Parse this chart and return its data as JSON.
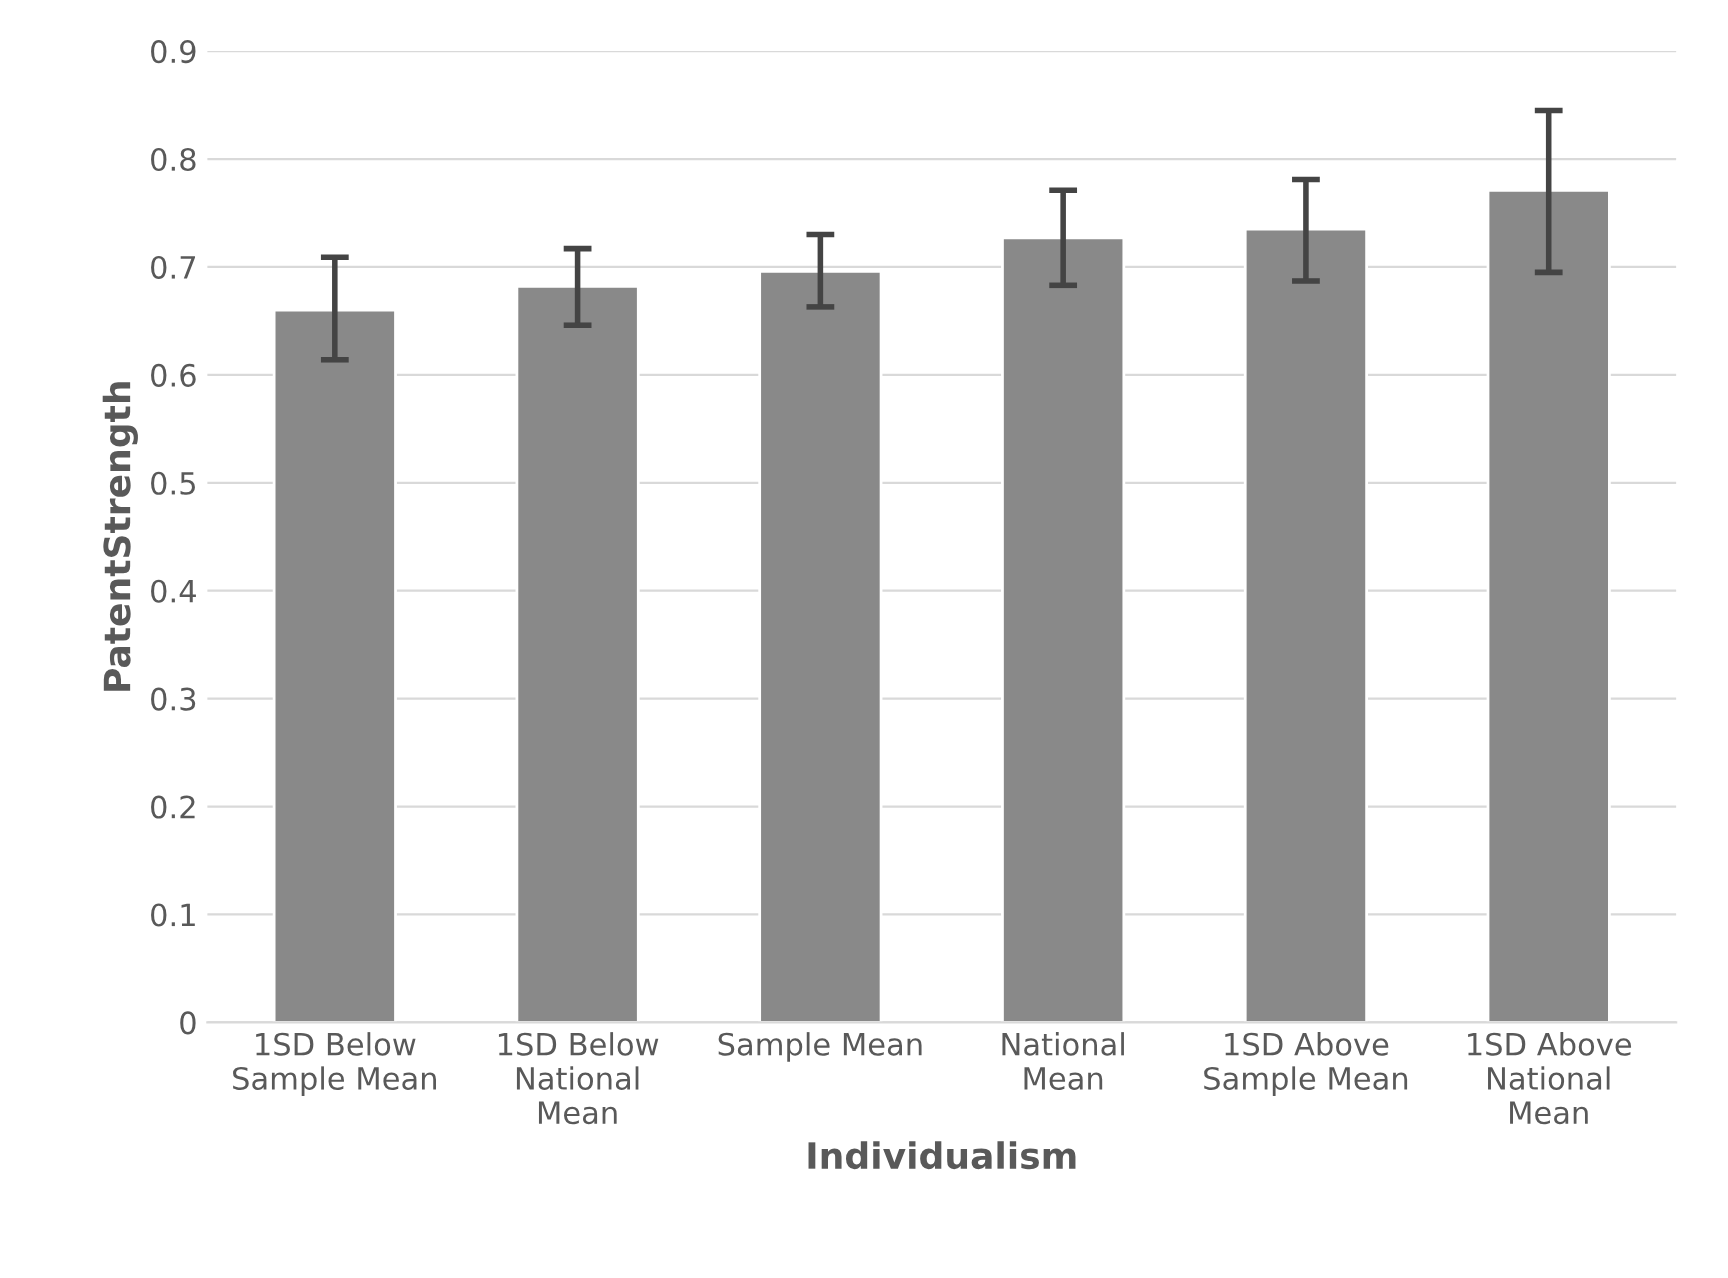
{
  "chart_data": {
    "type": "bar",
    "xlabel": "Individualism",
    "ylabel": "PatentStrength",
    "categories": [
      "1SD Below\nSample Mean",
      "1SD Below\nNational\nMean",
      "Sample Mean",
      "National\nMean",
      "1SD Above\nSample Mean",
      "1SD Above\nNational\nMean"
    ],
    "values": [
      0.66,
      0.682,
      0.696,
      0.727,
      0.735,
      0.771
    ],
    "errors": [
      [
        0.614,
        0.709
      ],
      [
        0.646,
        0.717
      ],
      [
        0.663,
        0.73
      ],
      [
        0.683,
        0.771
      ],
      [
        0.687,
        0.781
      ],
      [
        0.695,
        0.845
      ]
    ],
    "color": "#898989",
    "ylim": [
      0,
      0.9
    ],
    "yticks": [
      {
        "value": 0,
        "label": "0"
      },
      0.1,
      0.2,
      0.3,
      0.4,
      0.5,
      0.6,
      0.7,
      0.8,
      0.9
    ],
    "grid": "y"
  }
}
